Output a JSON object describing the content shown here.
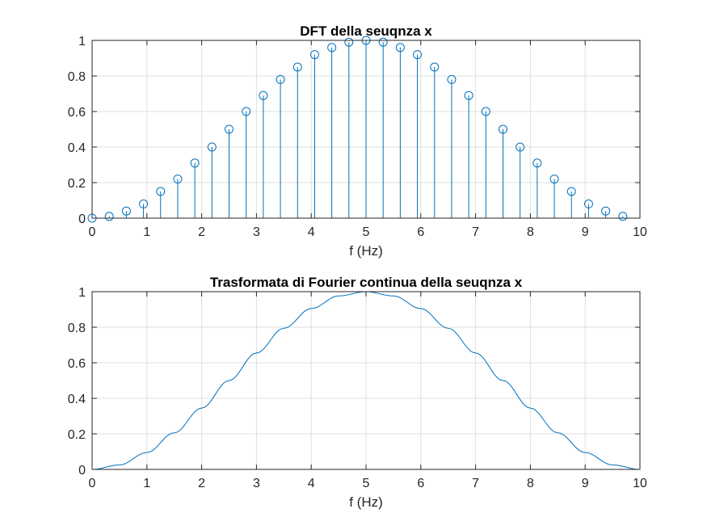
{
  "chart_data": [
    {
      "type": "stem",
      "title": "DFT della seuqnza x",
      "xlabel": "f (Hz)",
      "ylabel": "",
      "xlim": [
        0,
        10
      ],
      "ylim": [
        0,
        1
      ],
      "xticks": [
        "0",
        "1",
        "2",
        "3",
        "4",
        "5",
        "6",
        "7",
        "8",
        "9",
        "10"
      ],
      "yticks": [
        "0",
        "0.2",
        "0.4",
        "0.6",
        "0.8",
        "1"
      ],
      "grid": true,
      "color": "#0072BD",
      "x": [
        0,
        0.3125,
        0.625,
        0.9375,
        1.25,
        1.5625,
        1.875,
        2.1875,
        2.5,
        2.8125,
        3.125,
        3.4375,
        3.75,
        4.0625,
        4.375,
        4.6875,
        5.0,
        5.3125,
        5.625,
        5.9375,
        6.25,
        6.5625,
        6.875,
        7.1875,
        7.5,
        7.8125,
        8.125,
        8.4375,
        8.75,
        9.0625,
        9.375,
        9.6875
      ],
      "y": [
        0,
        0.01,
        0.04,
        0.08,
        0.15,
        0.22,
        0.31,
        0.4,
        0.5,
        0.6,
        0.69,
        0.78,
        0.85,
        0.92,
        0.96,
        0.99,
        1.0,
        0.99,
        0.96,
        0.92,
        0.85,
        0.78,
        0.69,
        0.6,
        0.5,
        0.4,
        0.31,
        0.22,
        0.15,
        0.08,
        0.04,
        0.01
      ]
    },
    {
      "type": "line",
      "title": "Trasformata di Fourier continua della seuqnza x",
      "xlabel": "f (Hz)",
      "ylabel": "",
      "xlim": [
        0,
        10
      ],
      "ylim": [
        0,
        1
      ],
      "xticks": [
        "0",
        "1",
        "2",
        "3",
        "4",
        "5",
        "6",
        "7",
        "8",
        "9",
        "10"
      ],
      "yticks": [
        "0",
        "0.2",
        "0.4",
        "0.6",
        "0.8",
        "1"
      ],
      "grid": true,
      "color": "#0072BD",
      "x": [
        0,
        0.5,
        1,
        1.5,
        2,
        2.5,
        3,
        3.5,
        4,
        4.5,
        5,
        5.5,
        6,
        6.5,
        7,
        7.5,
        8,
        8.5,
        9,
        9.5,
        10
      ],
      "y": [
        0,
        0.025,
        0.095,
        0.206,
        0.345,
        0.5,
        0.655,
        0.794,
        0.905,
        0.976,
        1.0,
        0.976,
        0.905,
        0.794,
        0.655,
        0.5,
        0.345,
        0.206,
        0.095,
        0.025,
        0
      ]
    }
  ]
}
